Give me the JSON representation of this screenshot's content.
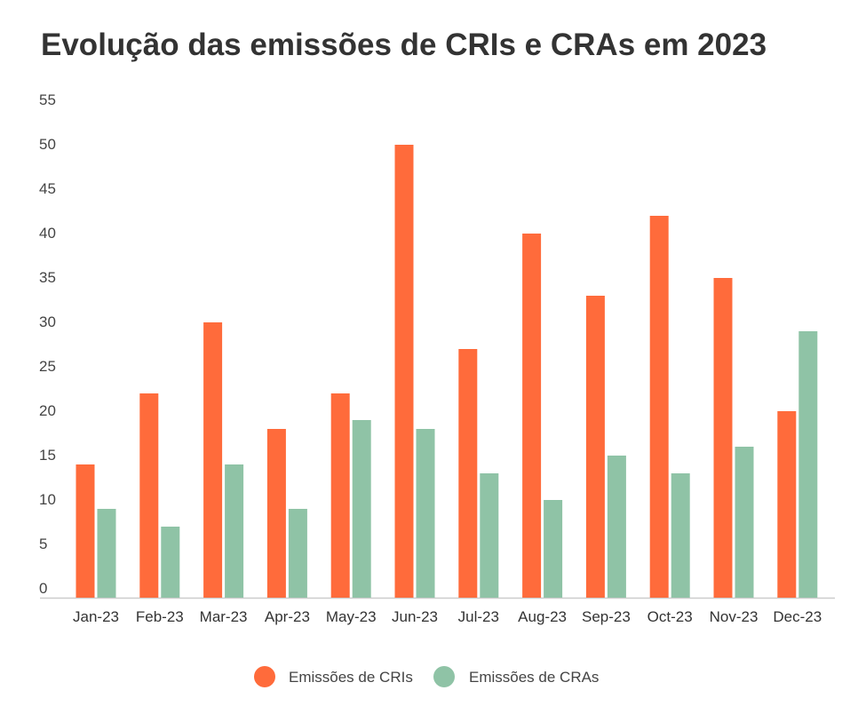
{
  "chart_data": {
    "type": "bar",
    "title": "Evolução das emissões de CRIs e CRAs em 2023",
    "xlabel": "",
    "ylabel": "",
    "ylim": [
      0,
      55
    ],
    "yticks": [
      "0",
      "5",
      "10",
      "15",
      "20",
      "25",
      "30",
      "35",
      "40",
      "45",
      "50",
      "55"
    ],
    "grid": false,
    "legend_position": "bottom",
    "categories": [
      "Jan-23",
      "Feb-23",
      "Mar-23",
      "Apr-23",
      "May-23",
      "Jun-23",
      "Jul-23",
      "Aug-23",
      "Sep-23",
      "Oct-23",
      "Nov-23",
      "Dec-23"
    ],
    "series": [
      {
        "name": "Emissões de CRIs",
        "color": "#FF6B3B",
        "values": [
          15,
          23,
          31,
          19,
          23,
          51,
          28,
          41,
          34,
          43,
          36,
          21
        ]
      },
      {
        "name": "Emissões de CRAs",
        "color": "#8FC3A6",
        "values": [
          10,
          8,
          15,
          10,
          20,
          19,
          14,
          11,
          16,
          14,
          17,
          30
        ]
      }
    ]
  }
}
